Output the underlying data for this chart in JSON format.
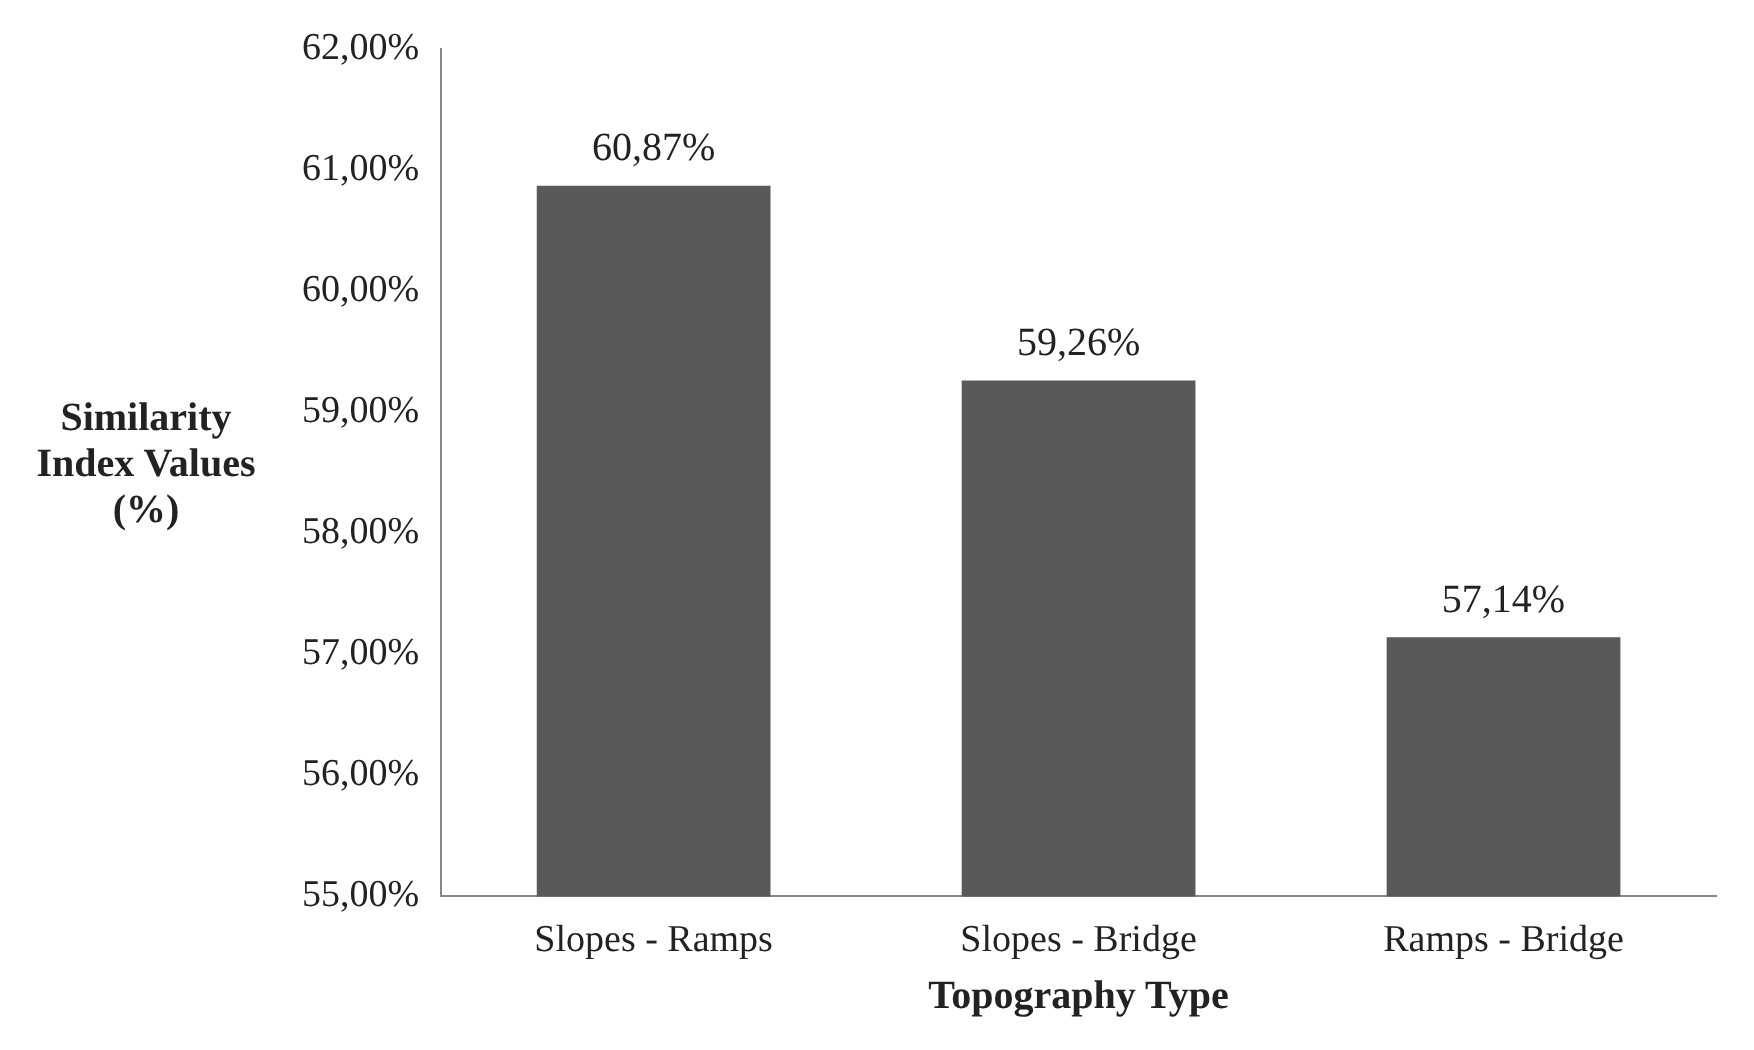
{
  "chart_data": {
    "type": "bar",
    "xlabel": "Topography Type",
    "ylabel": "Similarity Index Values (%)",
    "categories": [
      "Slopes - Ramps",
      "Slopes - Bridge",
      "Ramps - Bridge"
    ],
    "values": [
      60.87,
      59.26,
      57.14
    ],
    "value_labels": [
      "60,87%",
      "59,26%",
      "57,14%"
    ],
    "color": "#5a5858",
    "ylim": [
      55,
      62
    ],
    "yticks": [
      {
        "value": 55,
        "label": "55,00%"
      },
      {
        "value": 56,
        "label": "56,00%"
      },
      {
        "value": 57,
        "label": "57,00%"
      },
      {
        "value": 58,
        "label": "58,00%"
      },
      {
        "value": 59,
        "label": "59,00%"
      },
      {
        "value": 60,
        "label": "60,00%"
      },
      {
        "value": 61,
        "label": "61,00%"
      },
      {
        "value": 62,
        "label": "62,00%"
      }
    ],
    "grid": false,
    "legend": false
  }
}
